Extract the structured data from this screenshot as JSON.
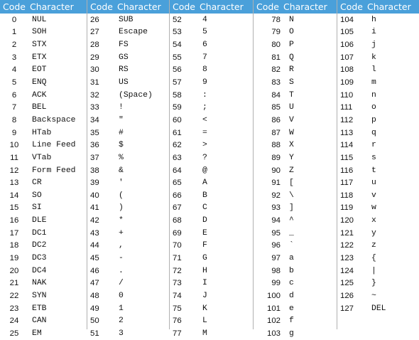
{
  "headers": {
    "code": "Code",
    "character": "Character"
  },
  "colors": {
    "header_bg": "#4aa0da",
    "header_text": "#ffffff",
    "divider": "#b0b0b0"
  },
  "blocks": [
    [
      [
        "0",
        "NUL"
      ],
      [
        "1",
        "SOH"
      ],
      [
        "2",
        "STX"
      ],
      [
        "3",
        "ETX"
      ],
      [
        "4",
        "EOT"
      ],
      [
        "5",
        "ENQ"
      ],
      [
        "6",
        "ACK"
      ],
      [
        "7",
        "BEL"
      ],
      [
        "8",
        "Backspace"
      ],
      [
        "9",
        "HTab"
      ],
      [
        "10",
        "Line Feed"
      ],
      [
        "11",
        "VTab"
      ],
      [
        "12",
        "Form Feed"
      ],
      [
        "13",
        "CR"
      ],
      [
        "14",
        "SO"
      ],
      [
        "15",
        "SI"
      ],
      [
        "16",
        "DLE"
      ],
      [
        "17",
        "DC1"
      ],
      [
        "18",
        "DC2"
      ],
      [
        "19",
        "DC3"
      ],
      [
        "20",
        "DC4"
      ],
      [
        "21",
        "NAK"
      ],
      [
        "22",
        "SYN"
      ],
      [
        "23",
        "ETB"
      ],
      [
        "24",
        "CAN"
      ],
      [
        "25",
        "EM"
      ]
    ],
    [
      [
        "26",
        "SUB"
      ],
      [
        "27",
        "Escape"
      ],
      [
        "28",
        "FS"
      ],
      [
        "29",
        "GS"
      ],
      [
        "30",
        "RS"
      ],
      [
        "31",
        "US"
      ],
      [
        "32",
        "(Space)"
      ],
      [
        "33",
        "!"
      ],
      [
        "34",
        "\""
      ],
      [
        "35",
        "#"
      ],
      [
        "36",
        "$"
      ],
      [
        "37",
        "%"
      ],
      [
        "38",
        "&"
      ],
      [
        "39",
        "'"
      ],
      [
        "40",
        "("
      ],
      [
        "41",
        ")"
      ],
      [
        "42",
        "*"
      ],
      [
        "43",
        "+"
      ],
      [
        "44",
        ","
      ],
      [
        "45",
        "-"
      ],
      [
        "46",
        "."
      ],
      [
        "47",
        "/"
      ],
      [
        "48",
        "0"
      ],
      [
        "49",
        "1"
      ],
      [
        "50",
        "2"
      ],
      [
        "51",
        "3"
      ]
    ],
    [
      [
        "52",
        "4"
      ],
      [
        "53",
        "5"
      ],
      [
        "54",
        "6"
      ],
      [
        "55",
        "7"
      ],
      [
        "56",
        "8"
      ],
      [
        "57",
        "9"
      ],
      [
        "58",
        ":"
      ],
      [
        "59",
        ";"
      ],
      [
        "60",
        "<"
      ],
      [
        "61",
        "="
      ],
      [
        "62",
        ">"
      ],
      [
        "63",
        "?"
      ],
      [
        "64",
        "@"
      ],
      [
        "65",
        "A"
      ],
      [
        "66",
        "B"
      ],
      [
        "67",
        "C"
      ],
      [
        "68",
        "D"
      ],
      [
        "69",
        "E"
      ],
      [
        "70",
        "F"
      ],
      [
        "71",
        "G"
      ],
      [
        "72",
        "H"
      ],
      [
        "73",
        "I"
      ],
      [
        "74",
        "J"
      ],
      [
        "75",
        "K"
      ],
      [
        "76",
        "L"
      ],
      [
        "77",
        "M"
      ]
    ],
    [
      [
        "78",
        "N"
      ],
      [
        "79",
        "O"
      ],
      [
        "80",
        "P"
      ],
      [
        "81",
        "Q"
      ],
      [
        "82",
        "R"
      ],
      [
        "83",
        "S"
      ],
      [
        "84",
        "T"
      ],
      [
        "85",
        "U"
      ],
      [
        "86",
        "V"
      ],
      [
        "87",
        "W"
      ],
      [
        "88",
        "X"
      ],
      [
        "89",
        "Y"
      ],
      [
        "90",
        "Z"
      ],
      [
        "91",
        "["
      ],
      [
        "92",
        "\\"
      ],
      [
        "93",
        "]"
      ],
      [
        "94",
        "^"
      ],
      [
        "95",
        "_"
      ],
      [
        "96",
        "`"
      ],
      [
        "97",
        "a"
      ],
      [
        "98",
        "b"
      ],
      [
        "99",
        "c"
      ],
      [
        "100",
        "d"
      ],
      [
        "101",
        "e"
      ],
      [
        "102",
        "f"
      ],
      [
        "103",
        "g"
      ]
    ],
    [
      [
        "104",
        "h"
      ],
      [
        "105",
        "i"
      ],
      [
        "106",
        "j"
      ],
      [
        "107",
        "k"
      ],
      [
        "108",
        "l"
      ],
      [
        "109",
        "m"
      ],
      [
        "110",
        "n"
      ],
      [
        "111",
        "o"
      ],
      [
        "112",
        "p"
      ],
      [
        "113",
        "q"
      ],
      [
        "114",
        "r"
      ],
      [
        "115",
        "s"
      ],
      [
        "116",
        "t"
      ],
      [
        "117",
        "u"
      ],
      [
        "118",
        "v"
      ],
      [
        "119",
        "w"
      ],
      [
        "120",
        "x"
      ],
      [
        "121",
        "y"
      ],
      [
        "122",
        "z"
      ],
      [
        "123",
        "{"
      ],
      [
        "124",
        "|"
      ],
      [
        "125",
        "}"
      ],
      [
        "126",
        "~"
      ],
      [
        "127",
        "DEL"
      ]
    ]
  ]
}
